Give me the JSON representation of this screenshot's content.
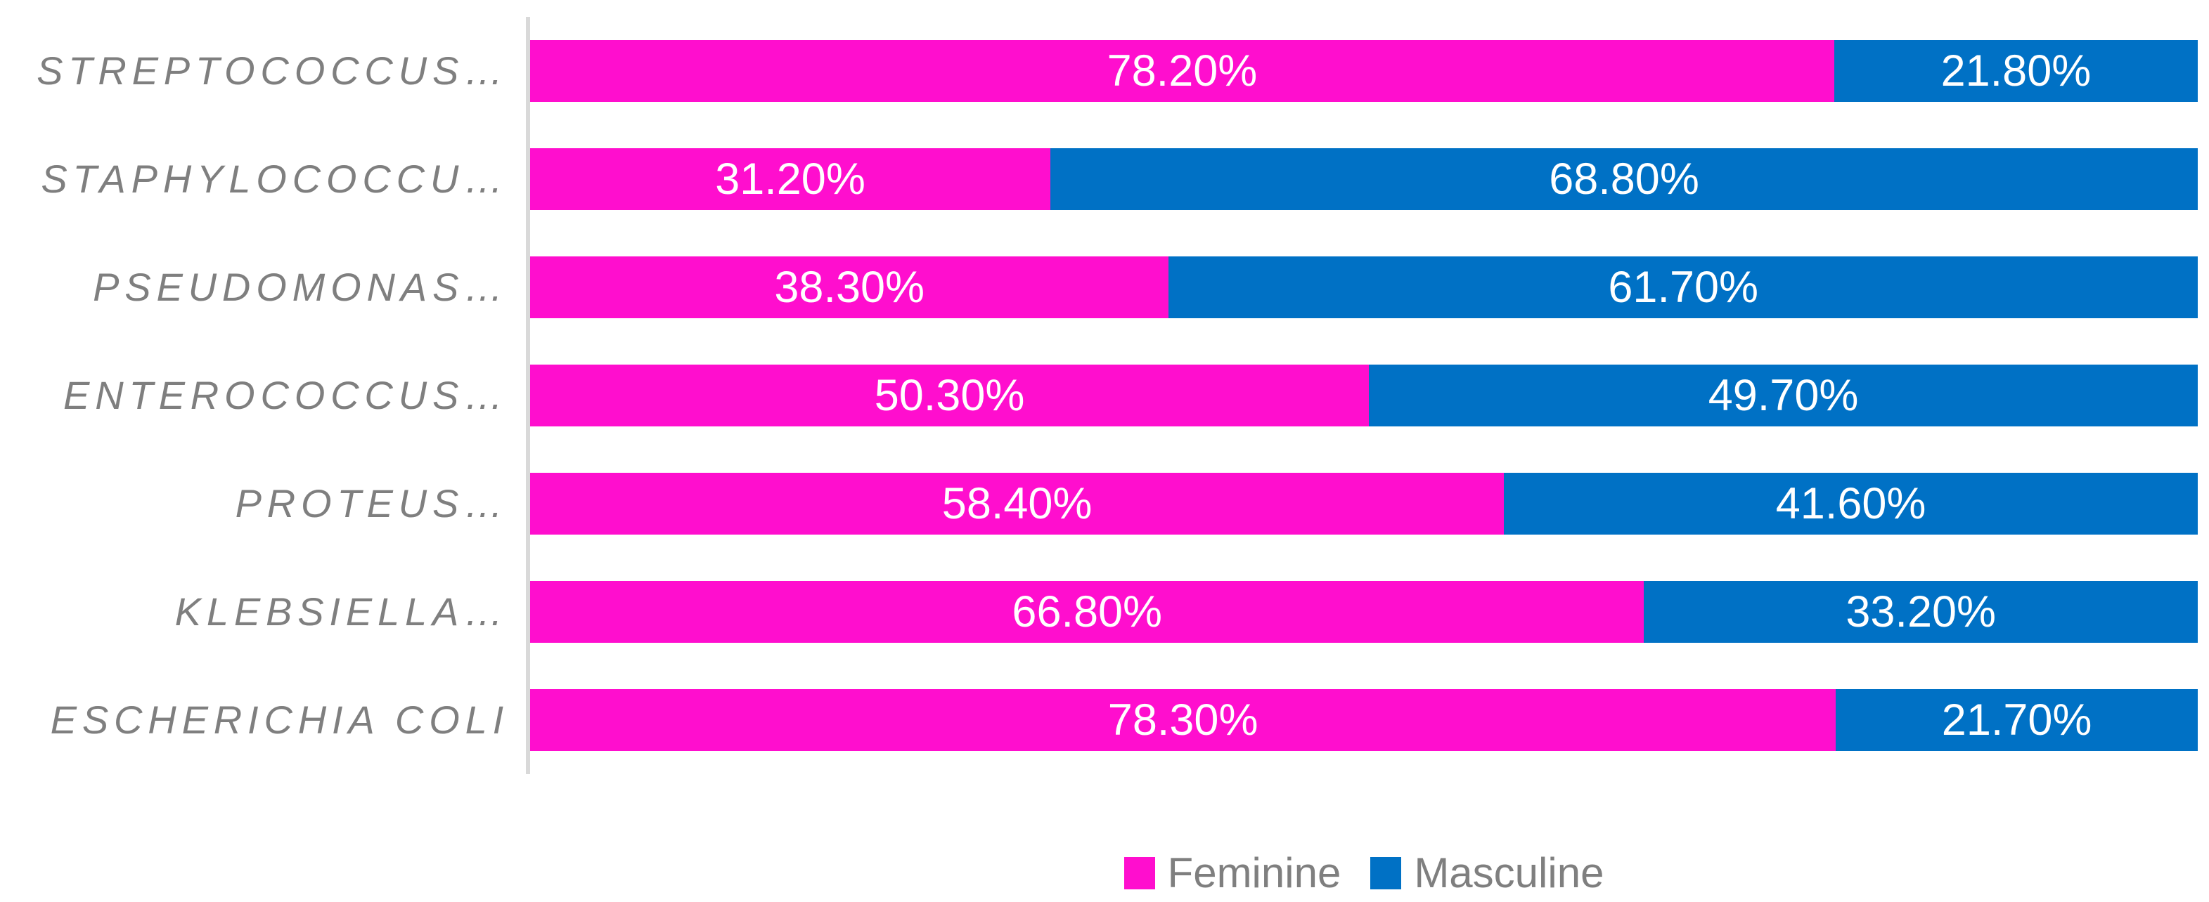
{
  "chart_data": {
    "type": "bar",
    "subtype": "stacked-horizontal-100pct",
    "title": "",
    "xlabel": "",
    "ylabel": "",
    "xlim": [
      0,
      100
    ],
    "grid": false,
    "legend_position": "bottom",
    "categories": [
      "STREPTOCOCCUS…",
      "STAPHYLOCOCCU…",
      "PSEUDOMONAS…",
      "ENTEROCOCCUS…",
      "PROTEUS…",
      "KLEBSIELLA…",
      "ESCHERICHIA COLI"
    ],
    "series": [
      {
        "name": "Feminine",
        "color": "#FF0ECE",
        "values": [
          78.2,
          31.2,
          38.3,
          50.3,
          58.4,
          66.8,
          78.3
        ],
        "labels": [
          "78.20%",
          "31.20%",
          "38.30%",
          "50.30%",
          "58.40%",
          "66.80%",
          "78.30%"
        ]
      },
      {
        "name": "Masculine",
        "color": "#0071C5",
        "values": [
          21.8,
          68.8,
          61.7,
          49.7,
          41.6,
          33.2,
          21.7
        ],
        "labels": [
          "21.80%",
          "68.80%",
          "61.70%",
          "49.70%",
          "41.60%",
          "33.20%",
          "21.70%"
        ]
      }
    ]
  },
  "legend": {
    "items": [
      {
        "label": "Feminine",
        "color": "#FF0ECE"
      },
      {
        "label": "Masculine",
        "color": "#0071C5"
      }
    ]
  },
  "style": {
    "category_label_color": "#7F7F7F",
    "value_label_color": "#FFFFFF",
    "axis_line_color": "#D9D9D9",
    "background": "#FFFFFF"
  }
}
